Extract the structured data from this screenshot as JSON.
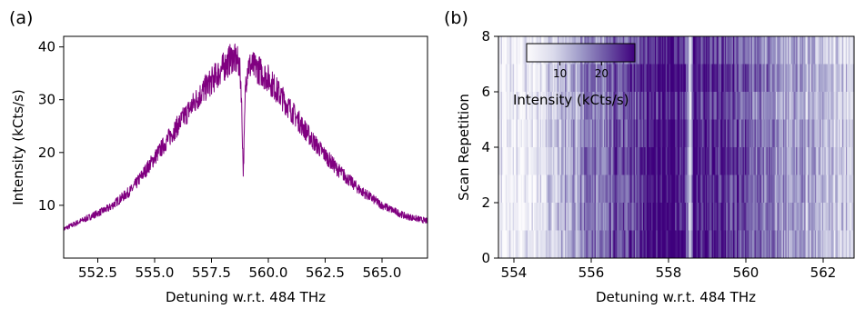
{
  "panels": {
    "a": "(a)",
    "b": "(b)"
  },
  "chart_data": [
    {
      "type": "line",
      "xlabel": "Detuning w.r.t. 484 THz",
      "ylabel": "Intensity (kCts/s)",
      "xlim": [
        551.0,
        567.0
      ],
      "ylim": [
        0.0,
        42.0
      ],
      "xticks": [
        552.5,
        555.0,
        557.5,
        560.0,
        562.5,
        565.0
      ],
      "yticks": [
        10,
        20,
        30,
        40
      ],
      "xtick_labels": [
        "552.5",
        "555.0",
        "557.5",
        "560.0",
        "562.5",
        "565.0"
      ],
      "ytick_labels": [
        "10",
        "20",
        "30",
        "40"
      ],
      "color": "#800080",
      "grid": false,
      "series": [
        {
          "x": [
            551.0,
            552.0,
            553.0,
            554.0,
            555.0,
            556.0,
            557.0,
            558.0,
            558.4,
            558.7,
            558.8,
            558.9,
            559.0,
            559.1,
            559.5,
            560.0,
            561.0,
            562.0,
            563.0,
            564.0,
            565.0,
            566.0,
            567.0
          ],
          "values": [
            5.5,
            7.5,
            9.5,
            13.0,
            19.0,
            25.0,
            31.0,
            36.0,
            38.0,
            37.0,
            33.0,
            16.0,
            33.0,
            36.5,
            36.0,
            34.0,
            28.0,
            22.0,
            17.0,
            13.0,
            10.0,
            8.0,
            7.0
          ]
        }
      ]
    },
    {
      "type": "heatmap",
      "xlabel": "Detuning w.r.t. 484 THz",
      "ylabel": "Scan Repetition",
      "xlim": [
        553.6,
        562.8
      ],
      "ylim": [
        0,
        8
      ],
      "xticks": [
        554,
        556,
        558,
        560,
        562
      ],
      "yticks": [
        0,
        2,
        4,
        6,
        8
      ],
      "xtick_labels": [
        "554",
        "556",
        "558",
        "560",
        "562"
      ],
      "ytick_labels": [
        "0",
        "2",
        "4",
        "6",
        "8"
      ],
      "rows": 8,
      "colormap": "Purples",
      "colorbar": {
        "label": "Intensity (kCts/s)",
        "range": [
          2,
          28
        ],
        "ticks": [
          10,
          20
        ],
        "tick_labels": [
          "10",
          "20"
        ],
        "location": "upper-left"
      },
      "profile": {
        "x": [
          553.6,
          554.5,
          555.5,
          556.5,
          557.5,
          558.2,
          558.45,
          558.55,
          558.65,
          559.0,
          559.5,
          560.5,
          561.5,
          562.8
        ],
        "values": [
          4.0,
          6.0,
          13.0,
          19.0,
          24.0,
          26.0,
          25.0,
          8.0,
          25.0,
          24.0,
          22.0,
          17.0,
          12.0,
          9.0
        ]
      }
    }
  ]
}
